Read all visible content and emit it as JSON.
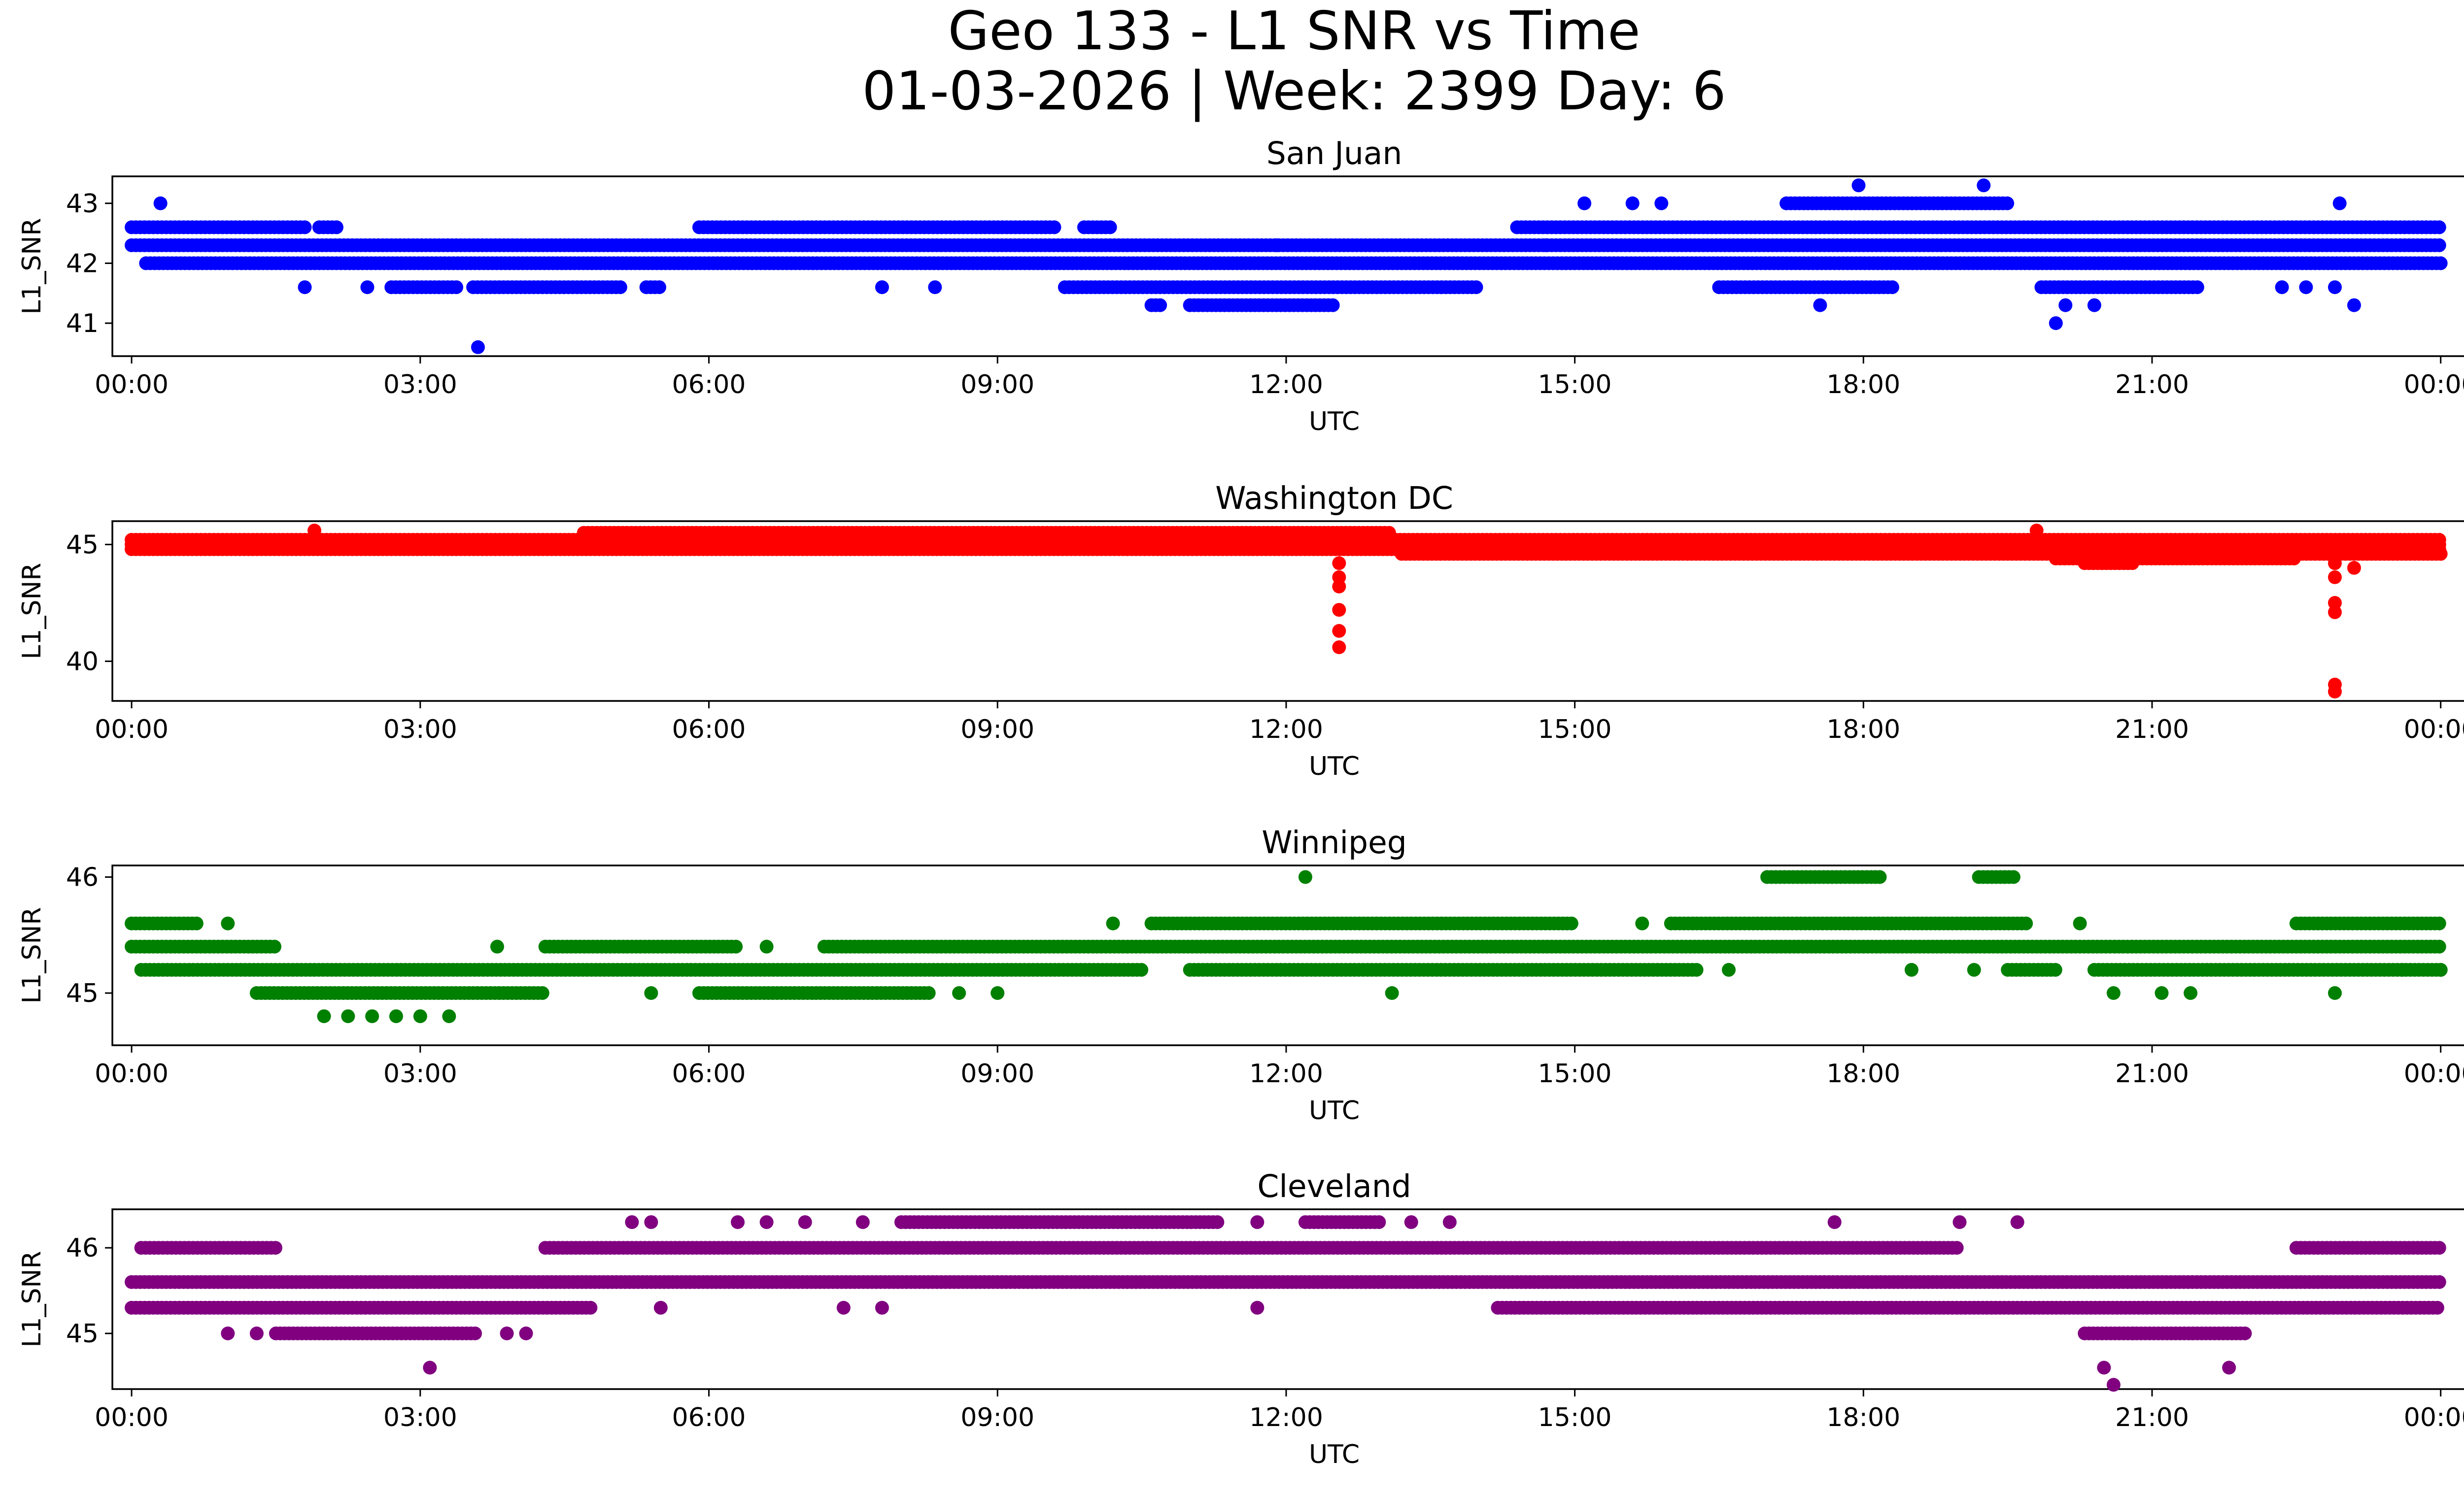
{
  "figure": {
    "title_line1": "Geo 133 - L1 SNR vs Time",
    "title_line2": "01-03-2026 | Week: 2399 Day: 6"
  },
  "chart_data": [
    {
      "type": "scatter",
      "title": "San Juan",
      "xlabel": "UTC",
      "ylabel": "L1_SNR",
      "color": "#0000ff",
      "xlim": [
        -0.2,
        25.2
      ],
      "ylim": [
        40.45,
        43.45
      ],
      "x_ticks": [
        0,
        3,
        6,
        9,
        12,
        15,
        18,
        21,
        24
      ],
      "x_tick_labels": [
        "00:00",
        "03:00",
        "06:00",
        "09:00",
        "12:00",
        "15:00",
        "18:00",
        "21:00",
        "00:00"
      ],
      "y_ticks": [
        41,
        42,
        43
      ],
      "y_tick_labels": [
        "41",
        "42",
        "43"
      ],
      "bands": [
        {
          "y": 42.6,
          "ranges": [
            [
              0,
              1.8
            ],
            [
              1.95,
              2.15
            ],
            [
              5.9,
              9.6
            ],
            [
              9.9,
              10.2
            ],
            [
              14.4,
              24
            ]
          ]
        },
        {
          "y": 42.3,
          "ranges": [
            [
              0,
              24
            ]
          ]
        },
        {
          "y": 42.0,
          "ranges": [
            [
              0.15,
              24
            ]
          ]
        },
        {
          "y": 41.6,
          "ranges": [
            [
              2.7,
              3.4
            ],
            [
              3.55,
              5.1
            ],
            [
              5.35,
              5.5
            ],
            [
              9.7,
              14.0
            ],
            [
              16.5,
              18.3
            ],
            [
              19.85,
              21.5
            ]
          ]
        },
        {
          "y": 41.3,
          "ranges": [
            [
              10.6,
              10.7
            ],
            [
              11.0,
              12.5
            ]
          ]
        },
        {
          "y": 43.0,
          "ranges": [
            [
              17.2,
              19.5
            ]
          ]
        }
      ],
      "points": [
        {
          "x": 0.3,
          "y": 43.0
        },
        {
          "x": 1.8,
          "y": 41.6
        },
        {
          "x": 2.45,
          "y": 41.6
        },
        {
          "x": 3.6,
          "y": 40.6
        },
        {
          "x": 7.8,
          "y": 41.6
        },
        {
          "x": 8.35,
          "y": 41.6
        },
        {
          "x": 11.9,
          "y": 42.3
        },
        {
          "x": 14.7,
          "y": 42.3
        },
        {
          "x": 15.1,
          "y": 43.0
        },
        {
          "x": 15.6,
          "y": 43.0
        },
        {
          "x": 15.9,
          "y": 43.0
        },
        {
          "x": 17.55,
          "y": 41.3
        },
        {
          "x": 17.95,
          "y": 43.3
        },
        {
          "x": 19.25,
          "y": 43.3
        },
        {
          "x": 20.0,
          "y": 41.0
        },
        {
          "x": 20.1,
          "y": 41.3
        },
        {
          "x": 20.4,
          "y": 41.3
        },
        {
          "x": 22.35,
          "y": 41.6
        },
        {
          "x": 22.6,
          "y": 41.6
        },
        {
          "x": 22.9,
          "y": 41.6
        },
        {
          "x": 22.95,
          "y": 43.0
        },
        {
          "x": 23.1,
          "y": 41.3
        }
      ]
    },
    {
      "type": "scatter",
      "title": "Washington DC",
      "xlabel": "UTC",
      "ylabel": "L1_SNR",
      "color": "#ff0000",
      "xlim": [
        -0.2,
        25.2
      ],
      "ylim": [
        38.3,
        46.0
      ],
      "x_ticks": [
        0,
        3,
        6,
        9,
        12,
        15,
        18,
        21,
        24
      ],
      "x_tick_labels": [
        "00:00",
        "03:00",
        "06:00",
        "09:00",
        "12:00",
        "15:00",
        "18:00",
        "21:00",
        "00:00"
      ],
      "y_ticks": [
        40,
        45
      ],
      "y_tick_labels": [
        "40",
        "45"
      ],
      "bands": [
        {
          "y": 45.5,
          "ranges": [
            [
              4.7,
              13.1
            ]
          ]
        },
        {
          "y": 45.2,
          "ranges": [
            [
              0,
              24
            ]
          ]
        },
        {
          "y": 45.0,
          "ranges": [
            [
              0,
              24
            ]
          ]
        },
        {
          "y": 44.8,
          "ranges": [
            [
              0,
              24
            ]
          ]
        },
        {
          "y": 44.6,
          "ranges": [
            [
              13.2,
              24
            ]
          ]
        },
        {
          "y": 44.4,
          "ranges": [
            [
              20.0,
              22.5
            ]
          ]
        },
        {
          "y": 44.2,
          "ranges": [
            [
              20.3,
              20.8
            ]
          ]
        }
      ],
      "points": [
        {
          "x": 12.55,
          "y": 44.2
        },
        {
          "x": 12.55,
          "y": 43.6
        },
        {
          "x": 12.55,
          "y": 43.2
        },
        {
          "x": 12.55,
          "y": 42.2
        },
        {
          "x": 12.55,
          "y": 41.3
        },
        {
          "x": 12.55,
          "y": 40.6
        },
        {
          "x": 22.9,
          "y": 44.2
        },
        {
          "x": 22.9,
          "y": 43.6
        },
        {
          "x": 22.9,
          "y": 42.5
        },
        {
          "x": 22.9,
          "y": 42.1
        },
        {
          "x": 22.9,
          "y": 39.0
        },
        {
          "x": 22.9,
          "y": 38.7
        },
        {
          "x": 23.1,
          "y": 44.0
        },
        {
          "x": 1.9,
          "y": 45.6
        },
        {
          "x": 19.8,
          "y": 45.6
        }
      ]
    },
    {
      "type": "scatter",
      "title": "Winnipeg",
      "xlabel": "UTC",
      "ylabel": "L1_SNR",
      "color": "#008000",
      "xlim": [
        -0.2,
        25.2
      ],
      "ylim": [
        44.55,
        46.1
      ],
      "x_ticks": [
        0,
        3,
        6,
        9,
        12,
        15,
        18,
        21,
        24
      ],
      "x_tick_labels": [
        "00:00",
        "03:00",
        "06:00",
        "09:00",
        "12:00",
        "15:00",
        "18:00",
        "21:00",
        "00:00"
      ],
      "y_ticks": [
        45,
        46
      ],
      "y_tick_labels": [
        "45",
        "46"
      ],
      "bands": [
        {
          "y": 45.6,
          "ranges": [
            [
              0,
              0.7
            ],
            [
              10.6,
              15.0
            ],
            [
              16.0,
              19.7
            ],
            [
              22.5,
              24
            ]
          ]
        },
        {
          "y": 45.4,
          "ranges": [
            [
              0,
              1.5
            ],
            [
              4.3,
              6.3
            ],
            [
              7.2,
              24
            ]
          ]
        },
        {
          "y": 45.2,
          "ranges": [
            [
              0.1,
              10.5
            ],
            [
              11.0,
              16.3
            ],
            [
              19.5,
              20.0
            ],
            [
              20.4,
              24
            ]
          ]
        },
        {
          "y": 45.0,
          "ranges": [
            [
              1.3,
              4.3
            ],
            [
              5.9,
              8.3
            ]
          ]
        },
        {
          "y": 46.0,
          "ranges": [
            [
              17.0,
              18.2
            ],
            [
              19.2,
              19.6
            ]
          ]
        }
      ],
      "points": [
        {
          "x": 1.0,
          "y": 45.6
        },
        {
          "x": 2.0,
          "y": 44.8
        },
        {
          "x": 2.25,
          "y": 44.8
        },
        {
          "x": 2.5,
          "y": 44.8
        },
        {
          "x": 2.75,
          "y": 44.8
        },
        {
          "x": 3.0,
          "y": 44.8
        },
        {
          "x": 3.3,
          "y": 44.8
        },
        {
          "x": 3.8,
          "y": 45.4
        },
        {
          "x": 5.4,
          "y": 45.0
        },
        {
          "x": 6.6,
          "y": 45.4
        },
        {
          "x": 8.6,
          "y": 45.0
        },
        {
          "x": 9.0,
          "y": 45.0
        },
        {
          "x": 10.2,
          "y": 45.6
        },
        {
          "x": 12.2,
          "y": 46.0
        },
        {
          "x": 13.1,
          "y": 45.0
        },
        {
          "x": 15.7,
          "y": 45.6
        },
        {
          "x": 16.6,
          "y": 45.2
        },
        {
          "x": 18.5,
          "y": 45.2
        },
        {
          "x": 19.15,
          "y": 45.2
        },
        {
          "x": 20.25,
          "y": 45.6
        },
        {
          "x": 20.6,
          "y": 45.0
        },
        {
          "x": 21.1,
          "y": 45.0
        },
        {
          "x": 21.4,
          "y": 45.0
        },
        {
          "x": 22.9,
          "y": 45.0
        },
        {
          "x": 23.6,
          "y": 45.2
        },
        {
          "x": 24.0,
          "y": 45.2
        }
      ]
    },
    {
      "type": "scatter",
      "title": "Cleveland",
      "xlabel": "UTC",
      "ylabel": "L1_SNR",
      "color": "#800080",
      "xlim": [
        -0.2,
        25.2
      ],
      "ylim": [
        44.35,
        46.45
      ],
      "x_ticks": [
        0,
        3,
        6,
        9,
        12,
        15,
        18,
        21,
        24
      ],
      "x_tick_labels": [
        "00:00",
        "03:00",
        "06:00",
        "09:00",
        "12:00",
        "15:00",
        "18:00",
        "21:00",
        "00:00"
      ],
      "y_ticks": [
        45,
        46
      ],
      "y_tick_labels": [
        "45",
        "46"
      ],
      "bands": [
        {
          "y": 46.0,
          "ranges": [
            [
              0.1,
              1.5
            ],
            [
              4.3,
              19.0
            ],
            [
              22.5,
              24
            ]
          ]
        },
        {
          "y": 45.6,
          "ranges": [
            [
              0,
              24
            ]
          ]
        },
        {
          "y": 45.3,
          "ranges": [
            [
              0,
              4.8
            ],
            [
              14.2,
              24
            ]
          ]
        },
        {
          "y": 45.0,
          "ranges": [
            [
              1.5,
              3.6
            ],
            [
              20.3,
              22.0
            ]
          ]
        },
        {
          "y": 46.3,
          "ranges": [
            [
              8.0,
              11.3
            ],
            [
              12.2,
              13.0
            ]
          ]
        }
      ],
      "points": [
        {
          "x": 5.2,
          "y": 46.3
        },
        {
          "x": 5.4,
          "y": 46.3
        },
        {
          "x": 6.3,
          "y": 46.3
        },
        {
          "x": 6.6,
          "y": 46.3
        },
        {
          "x": 7.0,
          "y": 46.3
        },
        {
          "x": 7.6,
          "y": 46.3
        },
        {
          "x": 11.7,
          "y": 46.3
        },
        {
          "x": 13.3,
          "y": 46.3
        },
        {
          "x": 13.7,
          "y": 46.3
        },
        {
          "x": 17.7,
          "y": 46.3
        },
        {
          "x": 19.0,
          "y": 46.3
        },
        {
          "x": 19.6,
          "y": 46.3
        },
        {
          "x": 1.0,
          "y": 45.0
        },
        {
          "x": 1.3,
          "y": 45.0
        },
        {
          "x": 3.1,
          "y": 44.6
        },
        {
          "x": 3.9,
          "y": 45.0
        },
        {
          "x": 4.1,
          "y": 45.0
        },
        {
          "x": 5.5,
          "y": 45.3
        },
        {
          "x": 7.4,
          "y": 45.3
        },
        {
          "x": 7.8,
          "y": 45.3
        },
        {
          "x": 11.7,
          "y": 45.3
        },
        {
          "x": 20.5,
          "y": 44.6
        },
        {
          "x": 20.6,
          "y": 44.4
        },
        {
          "x": 21.8,
          "y": 44.6
        },
        {
          "x": 20.8,
          "y": 45.0
        }
      ]
    }
  ]
}
